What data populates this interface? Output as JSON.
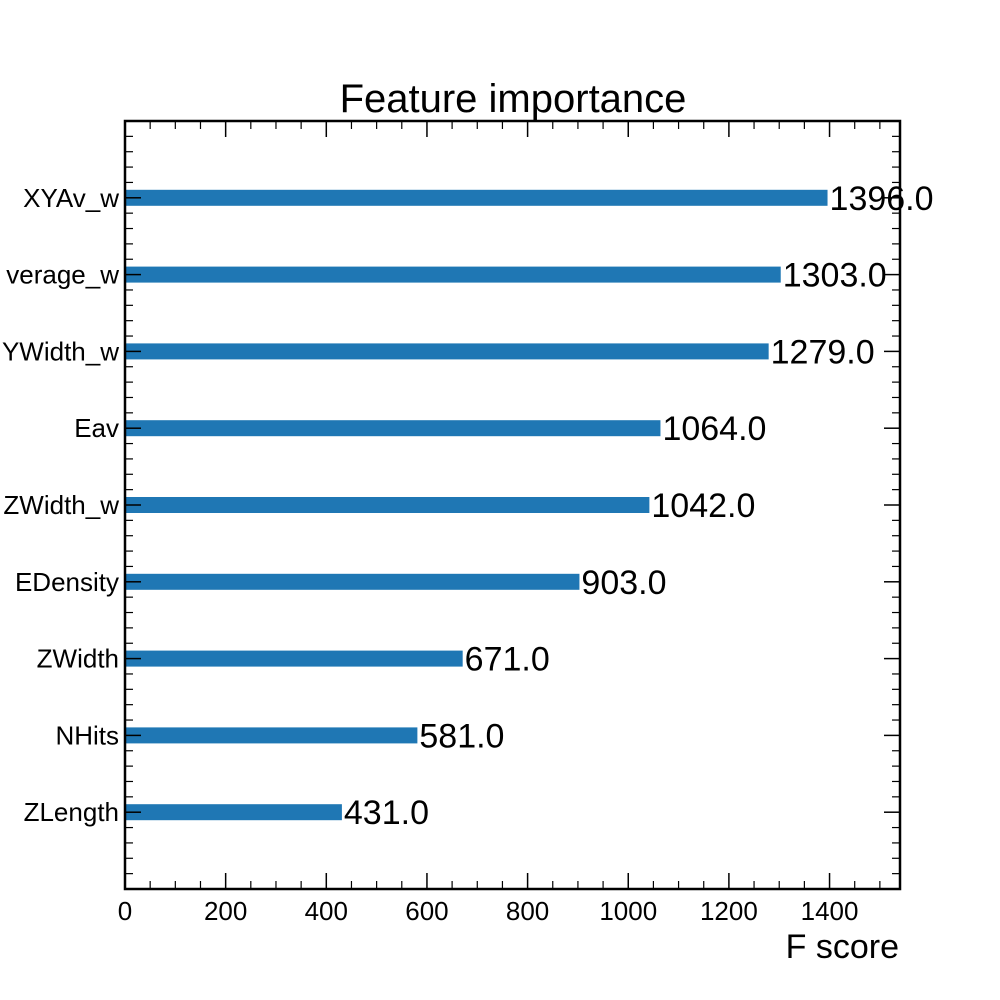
{
  "chart_data": {
    "type": "bar",
    "orientation": "horizontal",
    "title": "Feature importance",
    "xlabel": "F score",
    "ylabel": "",
    "xlim": [
      0,
      1540
    ],
    "xticks": [
      0,
      200,
      400,
      600,
      800,
      1000,
      1200,
      1400
    ],
    "xtick_labels": [
      "0",
      "200",
      "400",
      "600",
      "800",
      "1000",
      "1200",
      "1400"
    ],
    "categories": [
      "XYAv_w",
      "verage_w",
      "YWidth_w",
      "Eav",
      "ZWidth_w",
      "EDensity",
      "ZWidth",
      "NHits",
      "ZLength"
    ],
    "values": [
      1396,
      1303,
      1279,
      1064,
      1042,
      903,
      671,
      581,
      431
    ],
    "data_labels": [
      "1396.0",
      "1303.0",
      "1279.0",
      "1064.0",
      "1042.0",
      "903.0",
      "671.0",
      "581.0",
      "431.0"
    ],
    "grid": false,
    "colors": {
      "bar": "#1f77b4",
      "axis": "#000000",
      "text": "#000000",
      "background": "#ffffff"
    }
  }
}
